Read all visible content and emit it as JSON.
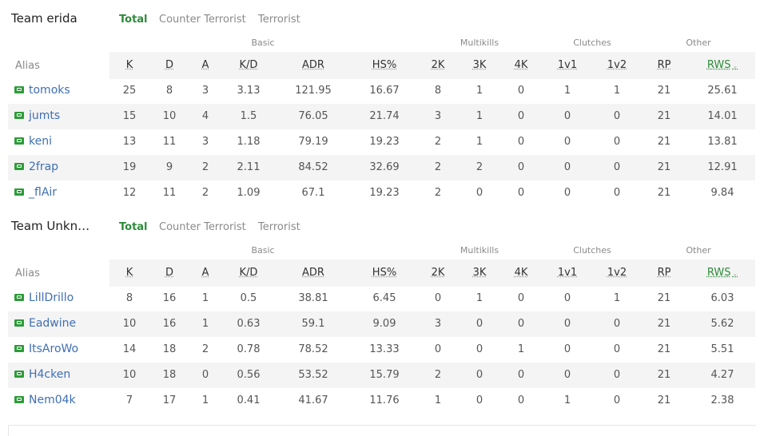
{
  "colors": {
    "accent": "#2e8b3a",
    "link": "#3f6fb5",
    "rowAlt": "#f4f4f4"
  },
  "tabs": [
    "Total",
    "Counter Terrorist",
    "Terrorist"
  ],
  "groups": {
    "basic": "Basic",
    "multikills": "Multikills",
    "clutches": "Clutches",
    "other": "Other"
  },
  "alias_header": "Alias",
  "columns": [
    "K",
    "D",
    "A",
    "K/D",
    "ADR",
    "HS%",
    "2K",
    "3K",
    "4K",
    "1v1",
    "1v2",
    "RP",
    "RWS"
  ],
  "teams": [
    {
      "name": "Team erida",
      "players": [
        {
          "alias": "tomoks",
          "stats": [
            "25",
            "8",
            "3",
            "3.13",
            "121.95",
            "16.67",
            "8",
            "1",
            "0",
            "1",
            "1",
            "21",
            "25.61"
          ]
        },
        {
          "alias": "jumts",
          "stats": [
            "15",
            "10",
            "4",
            "1.5",
            "76.05",
            "21.74",
            "3",
            "1",
            "0",
            "0",
            "0",
            "21",
            "14.01"
          ]
        },
        {
          "alias": "keni",
          "stats": [
            "13",
            "11",
            "3",
            "1.18",
            "79.19",
            "19.23",
            "2",
            "1",
            "0",
            "0",
            "0",
            "21",
            "13.81"
          ]
        },
        {
          "alias": "2frap",
          "stats": [
            "19",
            "9",
            "2",
            "2.11",
            "84.52",
            "32.69",
            "2",
            "2",
            "0",
            "0",
            "0",
            "21",
            "12.91"
          ]
        },
        {
          "alias": "_flAir",
          "stats": [
            "12",
            "11",
            "2",
            "1.09",
            "67.1",
            "19.23",
            "2",
            "0",
            "0",
            "0",
            "0",
            "21",
            "9.84"
          ]
        }
      ]
    },
    {
      "name": "Team Unkn…",
      "players": [
        {
          "alias": "LillDrillo",
          "stats": [
            "8",
            "16",
            "1",
            "0.5",
            "38.81",
            "6.45",
            "0",
            "1",
            "0",
            "0",
            "1",
            "21",
            "6.03"
          ]
        },
        {
          "alias": "Eadwine",
          "stats": [
            "10",
            "16",
            "1",
            "0.63",
            "59.1",
            "9.09",
            "3",
            "0",
            "0",
            "0",
            "0",
            "21",
            "5.62"
          ]
        },
        {
          "alias": "ItsAroWo",
          "stats": [
            "14",
            "18",
            "2",
            "0.78",
            "78.52",
            "13.33",
            "0",
            "0",
            "1",
            "0",
            "0",
            "21",
            "5.51"
          ]
        },
        {
          "alias": "H4cken",
          "stats": [
            "10",
            "18",
            "0",
            "0.56",
            "53.52",
            "15.79",
            "2",
            "0",
            "0",
            "0",
            "0",
            "21",
            "4.27"
          ]
        },
        {
          "alias": "Nem04k",
          "stats": [
            "7",
            "17",
            "1",
            "0.41",
            "41.67",
            "11.76",
            "1",
            "0",
            "0",
            "1",
            "0",
            "21",
            "2.38"
          ]
        }
      ]
    }
  ]
}
